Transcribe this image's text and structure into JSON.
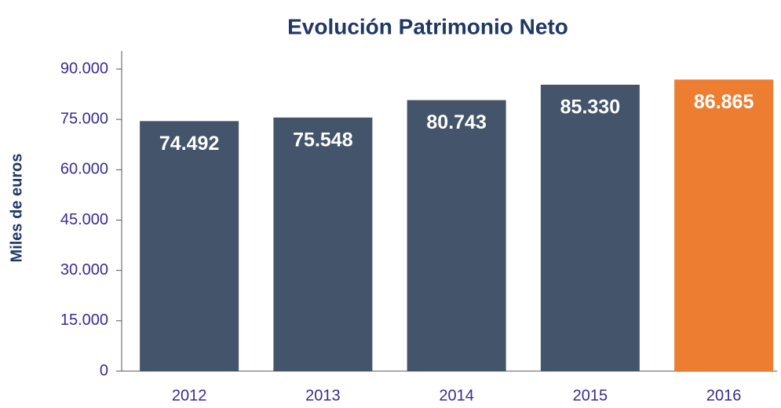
{
  "chart_data": {
    "type": "bar",
    "title": "Evolución Patrimonio Neto",
    "y_label": "Miles de euros",
    "categories": [
      "2012",
      "2013",
      "2014",
      "2015",
      "2016"
    ],
    "values": [
      74492,
      75548,
      80743,
      85330,
      86865
    ],
    "value_labels": [
      "74.492",
      "75.548",
      "80.743",
      "85.330",
      "86.865"
    ],
    "colors": [
      "#44546a",
      "#44546a",
      "#44546a",
      "#44546a",
      "#ed7d31"
    ],
    "ylim": [
      0,
      90000
    ],
    "yticks": [
      0,
      {
        "value": 15000,
        "label": "15.000"
      },
      {
        "value": 30000,
        "label": "30.000"
      },
      {
        "value": 45000,
        "label": "45.000"
      },
      {
        "value": 60000,
        "label": "60.000"
      },
      {
        "value": 75000,
        "label": "75.000"
      },
      {
        "value": 90000,
        "label": "90.000"
      }
    ],
    "grid": false
  }
}
